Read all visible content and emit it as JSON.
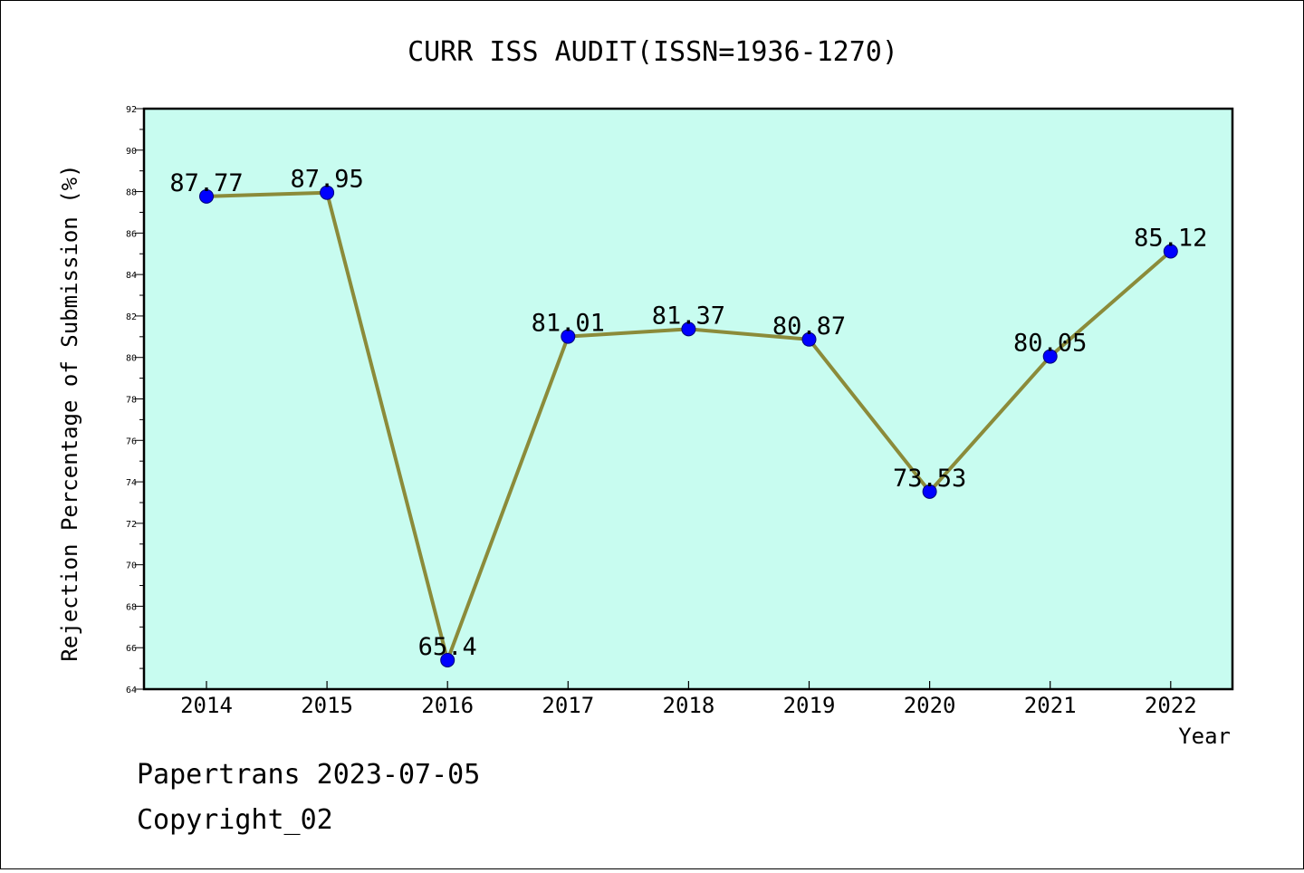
{
  "chart_data": {
    "type": "line",
    "title": "CURR ISS AUDIT(ISSN=1936-1270)",
    "xlabel": "Year",
    "ylabel": "Rejection Percentage of Submission (%)",
    "categories": [
      "2014",
      "2015",
      "2016",
      "2017",
      "2018",
      "2019",
      "2020",
      "2021",
      "2022"
    ],
    "values": [
      87.77,
      87.95,
      65.4,
      81.01,
      81.37,
      80.87,
      73.53,
      80.05,
      85.12
    ],
    "data_labels": [
      "87.77",
      "87.95",
      "65.4",
      "81.01",
      "81.37",
      "80.87",
      "73.53",
      "80.05",
      "85.12"
    ],
    "ylim": [
      64,
      92
    ],
    "yticks": [
      "64",
      "66",
      "68",
      "70",
      "72",
      "74",
      "76",
      "78",
      "80",
      "82",
      "84",
      "86",
      "88",
      "90",
      "92"
    ],
    "grid": false,
    "colors": {
      "plot_background": "#c8fcf0",
      "line": "#8b8b3a",
      "marker": "#0000ff"
    }
  },
  "footer": {
    "line1": "Papertrans 2023-07-05",
    "line2": "Copyright_02"
  }
}
